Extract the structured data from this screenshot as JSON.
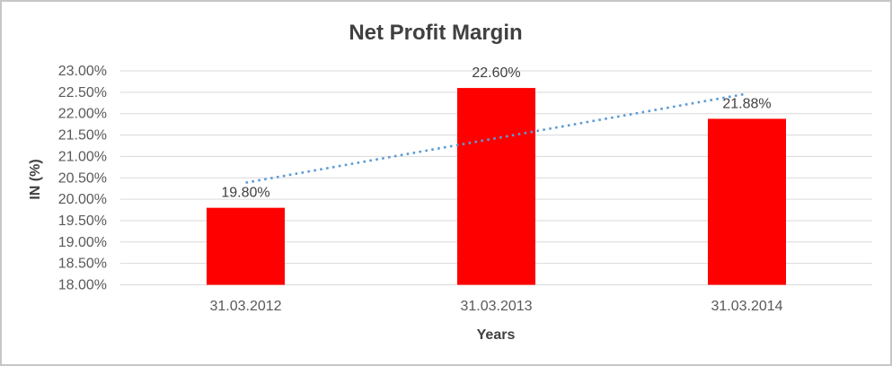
{
  "chart_data": {
    "type": "bar",
    "title": "Net Profit Margin",
    "xlabel": "Years",
    "ylabel": "IN (%)",
    "categories": [
      "31.03.2012",
      "31.03.2013",
      "31.03.2014"
    ],
    "values": [
      19.8,
      22.6,
      21.88
    ],
    "value_labels": [
      "19.80%",
      "22.60%",
      "21.88%"
    ],
    "ylim": [
      18.0,
      23.0
    ],
    "ytick_step": 0.5,
    "ytick_labels": [
      "23.00%",
      "22.50%",
      "22.00%",
      "21.50%",
      "21.00%",
      "20.50%",
      "20.00%",
      "19.50%",
      "19.00%",
      "18.50%",
      "18.00%"
    ],
    "grid": true,
    "legend": "none",
    "bar_color": "#FF0000",
    "gridline_color": "#D9D9D9",
    "trendline": {
      "type": "linear",
      "style": "dotted",
      "color": "#5B9BD5"
    },
    "text_colors": {
      "title": "#404040",
      "axis_titles": "#404040",
      "tick_labels": "#595959",
      "data_labels": "#404040"
    }
  }
}
